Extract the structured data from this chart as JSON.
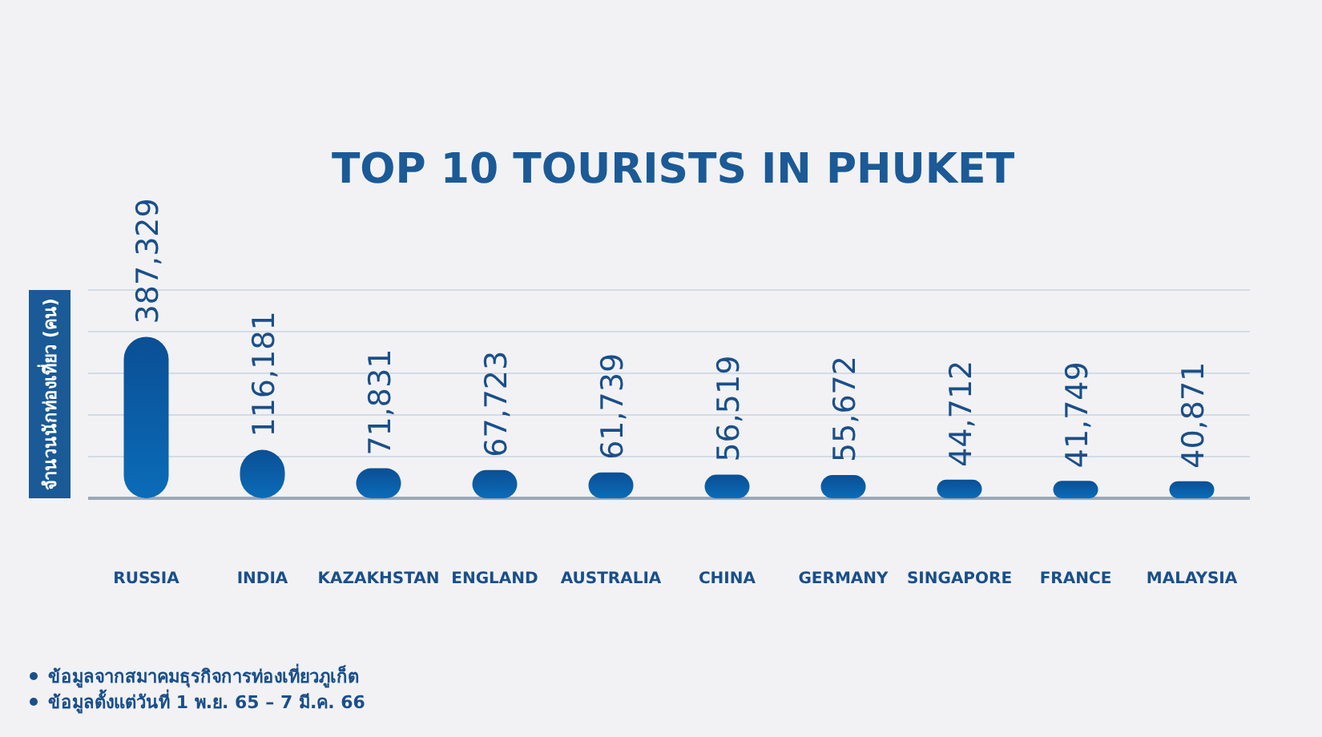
{
  "chart_data": {
    "type": "bar",
    "title": "TOP 10 TOURISTS IN PHUKET",
    "ylabel": "จำนวนนักท่องเที่ยว (คน)",
    "categories": [
      "RUSSIA",
      "INDIA",
      "KAZAKHSTAN",
      "ENGLAND",
      "AUSTRALIA",
      "CHINA",
      "GERMANY",
      "SINGAPORE",
      "FRANCE",
      "MALAYSIA"
    ],
    "values": [
      387329,
      116181,
      71831,
      67723,
      61739,
      56519,
      55672,
      44712,
      41749,
      40871
    ],
    "value_labels": [
      "387,329",
      "116,181",
      "71,831",
      "67,723",
      "61,739",
      "56,519",
      "55,672",
      "44,712",
      "41,749",
      "40,871"
    ],
    "color": "#0b6cb8",
    "grid": "y",
    "annotations": [
      "ข้อมูลจากสมาคมธุรกิจการท่องเที่ยวภูเก็ต",
      "ข้อมูลตั้งแต่วันที่ 1 พ.ย. 65 – 7 มี.ค. 66"
    ]
  }
}
